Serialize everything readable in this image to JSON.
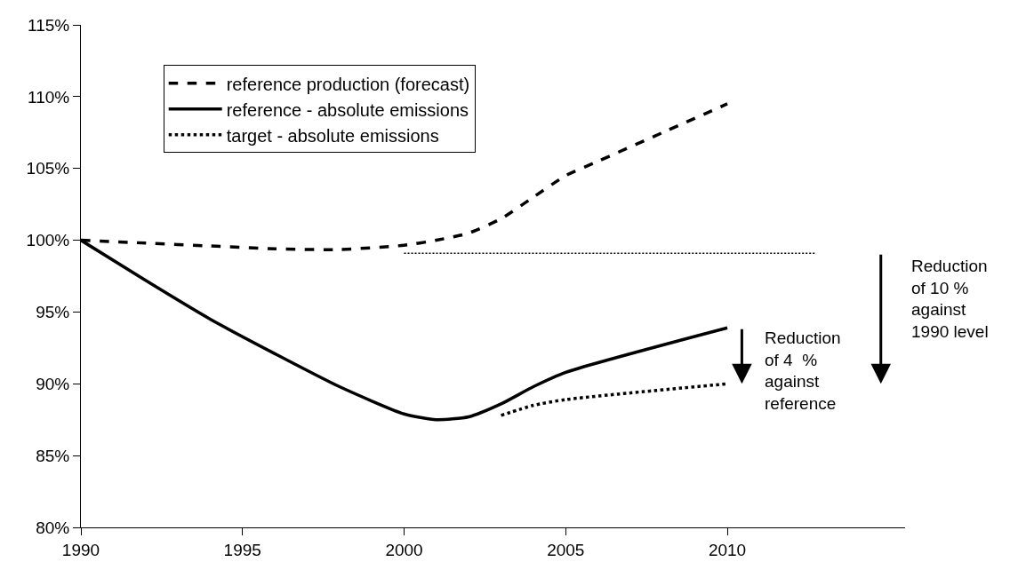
{
  "chart_data": {
    "type": "line",
    "x": [
      1990,
      1992,
      1994,
      1996,
      1998,
      2000,
      2001,
      2002,
      2003,
      2004,
      2005,
      2006,
      2008,
      2010
    ],
    "series": [
      {
        "name": "reference production (forecast)",
        "color": "#000000",
        "line_style": "dashed",
        "values": [
          100,
          99.8,
          99.6,
          99.4,
          99.35,
          99.65,
          100.0,
          100.5,
          101.5,
          103.0,
          104.5,
          105.5,
          107.5,
          109.5
        ]
      },
      {
        "name": "reference - absolute emissions",
        "color": "#000000",
        "line_style": "solid",
        "x": [
          1990,
          1992,
          1994,
          1996,
          1998,
          2000,
          2001,
          2002,
          2003,
          2004,
          2005,
          2010
        ],
        "values": [
          100,
          97.2,
          94.5,
          92.1,
          89.8,
          87.9,
          87.5,
          87.7,
          88.6,
          89.8,
          90.8,
          93.9
        ]
      },
      {
        "name": "target - absolute emissions",
        "color": "#000000",
        "line_style": "dotted",
        "x": [
          2003,
          2004,
          2005,
          2010
        ],
        "values": [
          87.8,
          88.5,
          88.9,
          90.0
        ]
      },
      {
        "color": "#000000",
        "line_style": "dotted",
        "x": [
          2000,
          2012.7
        ],
        "values": [
          99.1,
          99.1
        ]
      }
    ],
    "xlim": [
      1990,
      2015.5
    ],
    "xticks": [
      1990,
      1995,
      2000,
      2005,
      2010
    ],
    "ylim": [
      80,
      115
    ],
    "yticks": [
      {
        "value": 80,
        "label": "80%"
      },
      {
        "value": 85,
        "label": "85%"
      },
      {
        "value": 90,
        "label": "90%"
      },
      {
        "value": 95,
        "label": "95%"
      },
      {
        "value": 100,
        "label": "100%"
      },
      {
        "value": 105,
        "label": "105%"
      },
      {
        "value": 110,
        "label": "110%"
      },
      {
        "value": 115,
        "label": "115%"
      }
    ],
    "annotations": [
      "Reduction\nof 4  %\nagainst\nreference",
      "Reduction\nof 10 %\nagainst\n1990 level"
    ],
    "legend": "top left",
    "marker": "none"
  }
}
